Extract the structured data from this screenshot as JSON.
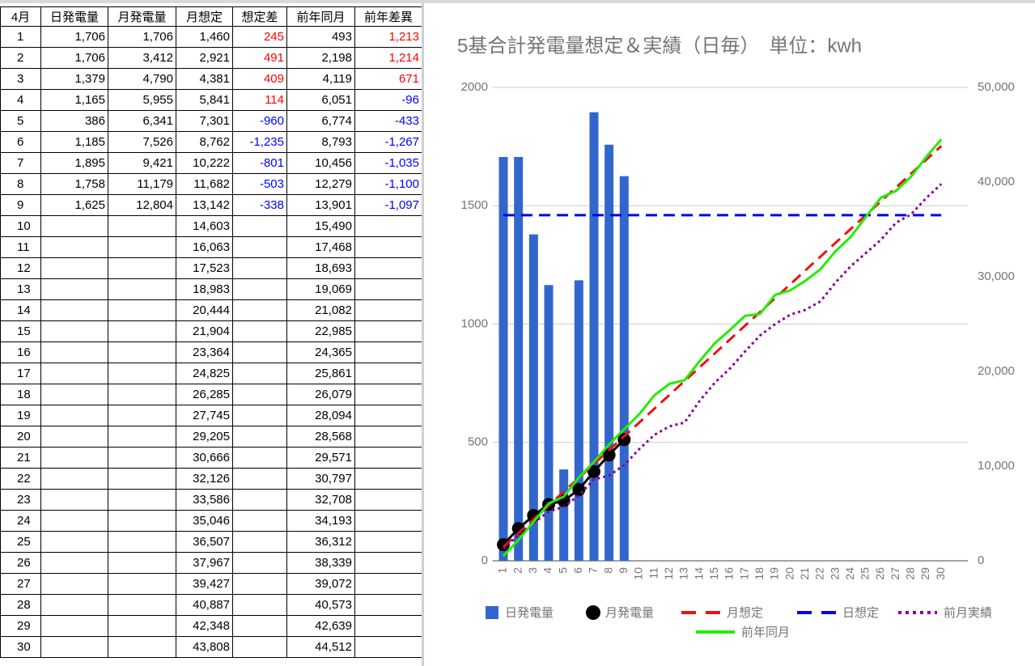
{
  "table": {
    "header": [
      "4月",
      "日発電量",
      "月発電量",
      "月想定",
      "想定差",
      "前年同月",
      "前年差異"
    ],
    "rows": [
      [
        "1",
        "1,706",
        "1,706",
        "1,460",
        "245",
        "493",
        "1,213"
      ],
      [
        "2",
        "1,706",
        "3,412",
        "2,921",
        "491",
        "2,198",
        "1,214"
      ],
      [
        "3",
        "1,379",
        "4,790",
        "4,381",
        "409",
        "4,119",
        "671"
      ],
      [
        "4",
        "1,165",
        "5,955",
        "5,841",
        "114",
        "6,051",
        "-96"
      ],
      [
        "5",
        "386",
        "6,341",
        "7,301",
        "-960",
        "6,774",
        "-433"
      ],
      [
        "6",
        "1,185",
        "7,526",
        "8,762",
        "-1,235",
        "8,793",
        "-1,267"
      ],
      [
        "7",
        "1,895",
        "9,421",
        "10,222",
        "-801",
        "10,456",
        "-1,035"
      ],
      [
        "8",
        "1,758",
        "11,179",
        "11,682",
        "-503",
        "12,279",
        "-1,100"
      ],
      [
        "9",
        "1,625",
        "12,804",
        "13,142",
        "-338",
        "13,901",
        "-1,097"
      ],
      [
        "10",
        null,
        null,
        "14,603",
        null,
        "15,490",
        null
      ],
      [
        "11",
        null,
        null,
        "16,063",
        null,
        "17,468",
        null
      ],
      [
        "12",
        null,
        null,
        "17,523",
        null,
        "18,693",
        null
      ],
      [
        "13",
        null,
        null,
        "18,983",
        null,
        "19,069",
        null
      ],
      [
        "14",
        null,
        null,
        "20,444",
        null,
        "21,082",
        null
      ],
      [
        "15",
        null,
        null,
        "21,904",
        null,
        "22,985",
        null
      ],
      [
        "16",
        null,
        null,
        "23,364",
        null,
        "24,365",
        null
      ],
      [
        "17",
        null,
        null,
        "24,825",
        null,
        "25,861",
        null
      ],
      [
        "18",
        null,
        null,
        "26,285",
        null,
        "26,079",
        null
      ],
      [
        "19",
        null,
        null,
        "27,745",
        null,
        "28,094",
        null
      ],
      [
        "20",
        null,
        null,
        "29,205",
        null,
        "28,568",
        null
      ],
      [
        "21",
        null,
        null,
        "30,666",
        null,
        "29,571",
        null
      ],
      [
        "22",
        null,
        null,
        "32,126",
        null,
        "30,797",
        null
      ],
      [
        "23",
        null,
        null,
        "33,586",
        null,
        "32,708",
        null
      ],
      [
        "24",
        null,
        null,
        "35,046",
        null,
        "34,193",
        null
      ],
      [
        "25",
        null,
        null,
        "36,507",
        null,
        "36,312",
        null
      ],
      [
        "26",
        null,
        null,
        "37,967",
        null,
        "38,339",
        null
      ],
      [
        "27",
        null,
        null,
        "39,427",
        null,
        "39,072",
        null
      ],
      [
        "28",
        null,
        null,
        "40,887",
        null,
        "40,573",
        null
      ],
      [
        "29",
        null,
        null,
        "42,348",
        null,
        "42,639",
        null
      ],
      [
        "30",
        null,
        null,
        "43,808",
        null,
        "44,512",
        null
      ]
    ]
  },
  "chart_data": {
    "type": "combo",
    "title": "5基合計発電量想定＆実績（日毎）　単位：kwh",
    "categories": [
      "1",
      "2",
      "3",
      "4",
      "5",
      "6",
      "7",
      "8",
      "9",
      "10",
      "11",
      "12",
      "13",
      "14",
      "15",
      "16",
      "17",
      "18",
      "19",
      "20",
      "21",
      "22",
      "23",
      "24",
      "25",
      "26",
      "27",
      "28",
      "29",
      "30"
    ],
    "ylim": [
      0,
      2000
    ],
    "yticks": [
      0,
      500,
      1000,
      1500,
      2000
    ],
    "y2lim": [
      0,
      50000
    ],
    "y2ticks": [
      0,
      {
        "value": 10000,
        "label": "10,000"
      },
      {
        "value": 20000,
        "label": "20,000"
      },
      {
        "value": 30000,
        "label": "30,000"
      },
      {
        "value": 40000,
        "label": "40,000"
      },
      {
        "value": 50000,
        "label": "50,000"
      }
    ],
    "grid": true,
    "legend": "bottom",
    "series": [
      {
        "name": "日発電量",
        "type": "bar",
        "color": "#3366cc",
        "values": [
          1706,
          1706,
          1379,
          1165,
          386,
          1185,
          1895,
          1758,
          1625,
          null,
          null,
          null,
          null,
          null,
          null,
          null,
          null,
          null,
          null,
          null,
          null,
          null,
          null,
          null,
          null,
          null,
          null,
          null,
          null,
          null
        ]
      },
      {
        "name": "月発電量",
        "type": "line",
        "axis": "y2",
        "color": "#000000",
        "marker": true,
        "values": [
          1706,
          3412,
          4790,
          5955,
          6341,
          7526,
          9421,
          11179,
          12804,
          null,
          null,
          null,
          null,
          null,
          null,
          null,
          null,
          null,
          null,
          null,
          null,
          null,
          null,
          null,
          null,
          null,
          null,
          null,
          null,
          null
        ]
      },
      {
        "name": "月想定",
        "type": "line",
        "axis": "y2",
        "color": "#ee1111",
        "dash": "dashed",
        "values": [
          1460,
          2921,
          4381,
          5841,
          7301,
          8762,
          10222,
          11682,
          13142,
          14603,
          16063,
          17523,
          18983,
          20444,
          21904,
          23364,
          24825,
          26285,
          27745,
          29205,
          30666,
          32126,
          33586,
          35046,
          36507,
          37967,
          39427,
          40887,
          42348,
          43808
        ]
      },
      {
        "name": "日想定",
        "type": "line",
        "color": "#0000ee",
        "dash": "dashed",
        "values": [
          1460,
          1460,
          1460,
          1460,
          1460,
          1460,
          1460,
          1460,
          1460,
          1460,
          1460,
          1460,
          1460,
          1460,
          1460,
          1460,
          1460,
          1460,
          1460,
          1460,
          1460,
          1460,
          1460,
          1460,
          1460,
          1460,
          1460,
          1460,
          1460,
          1460
        ]
      },
      {
        "name": "前月実績",
        "type": "line",
        "axis": "y2",
        "color": "#880099",
        "dash": "dotted",
        "values": [
          1300,
          2700,
          4000,
          5200,
          5700,
          6900,
          8600,
          9000,
          10100,
          11800,
          13300,
          14200,
          14600,
          16900,
          18800,
          20300,
          22100,
          23800,
          25000,
          26000,
          26500,
          27400,
          29400,
          31100,
          32500,
          33900,
          35700,
          36600,
          38300,
          39800
        ]
      },
      {
        "name": "前年同月",
        "type": "line",
        "axis": "y2",
        "color": "#22ee00",
        "values": [
          493,
          2198,
          4119,
          6051,
          6774,
          8793,
          10456,
          12279,
          13901,
          15490,
          17468,
          18693,
          19069,
          21082,
          22985,
          24365,
          25861,
          26079,
          28094,
          28568,
          29571,
          30797,
          32708,
          34193,
          36312,
          38339,
          39072,
          40573,
          42639,
          44512
        ]
      }
    ]
  }
}
